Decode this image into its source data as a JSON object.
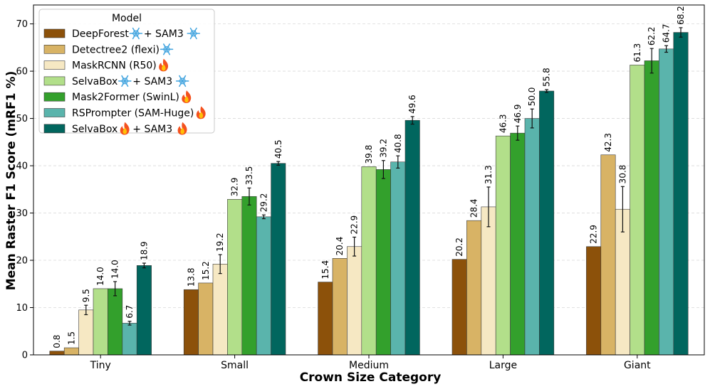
{
  "chart_data": {
    "type": "bar",
    "xlabel": "Crown Size Category",
    "ylabel": "Mean Raster F1 Score (mRF1 %)",
    "ylim": [
      0,
      74
    ],
    "yticks": [
      0,
      10,
      20,
      30,
      40,
      50,
      60,
      70
    ],
    "grid": "horizontal dashed",
    "categories": [
      "Tiny",
      "Small",
      "Medium",
      "Large",
      "Giant"
    ],
    "legend": {
      "title": "Model",
      "placement": "top-left"
    },
    "series": [
      {
        "name": "DeepForest",
        "icon": "snowflake",
        "suffix": "+ SAM3",
        "suffix_icon": "snowflake",
        "color": "#8c510a",
        "values": [
          0.8,
          13.8,
          15.4,
          20.2,
          22.9
        ],
        "errors": [
          0,
          0,
          0,
          0,
          0
        ]
      },
      {
        "name": "Detectree2 (flexi)",
        "icon": "snowflake",
        "suffix": "",
        "suffix_icon": "",
        "color": "#d8b365",
        "values": [
          1.5,
          15.2,
          20.4,
          28.4,
          42.3
        ],
        "errors": [
          0,
          0,
          0,
          0,
          0
        ]
      },
      {
        "name": "MaskRCNN (R50)",
        "icon": "fire",
        "suffix": "",
        "suffix_icon": "",
        "color": "#f6e8c3",
        "values": [
          9.5,
          19.2,
          22.9,
          31.3,
          30.8
        ],
        "errors": [
          1.0,
          2.0,
          2.0,
          4.2,
          4.8
        ]
      },
      {
        "name": "SelvaBox",
        "icon": "snowflake",
        "suffix": "+ SAM3",
        "suffix_icon": "snowflake",
        "color": "#b2df8a",
        "values": [
          14.0,
          32.9,
          39.8,
          46.3,
          61.3
        ],
        "errors": [
          0,
          0,
          0,
          0,
          0
        ]
      },
      {
        "name": "Mask2Former (SwinL)",
        "icon": "fire",
        "suffix": "",
        "suffix_icon": "",
        "color": "#33a02c",
        "values": [
          14.0,
          33.5,
          39.2,
          46.9,
          62.2
        ],
        "errors": [
          1.5,
          1.8,
          1.9,
          1.5,
          2.6
        ]
      },
      {
        "name": "RSPrompter (SAM-Huge)",
        "icon": "fire",
        "suffix": "",
        "suffix_icon": "",
        "color": "#5ab4ac",
        "values": [
          6.7,
          29.2,
          40.8,
          50.0,
          64.7
        ],
        "errors": [
          0.4,
          0.4,
          1.3,
          2.0,
          0.7
        ]
      },
      {
        "name": "SelvaBox",
        "icon": "fire",
        "suffix": "+ SAM3",
        "suffix_icon": "fire",
        "color": "#01665e",
        "values": [
          18.9,
          40.5,
          49.6,
          55.8,
          68.2
        ],
        "errors": [
          0.5,
          0.4,
          0.8,
          0.3,
          1.0
        ]
      }
    ]
  }
}
